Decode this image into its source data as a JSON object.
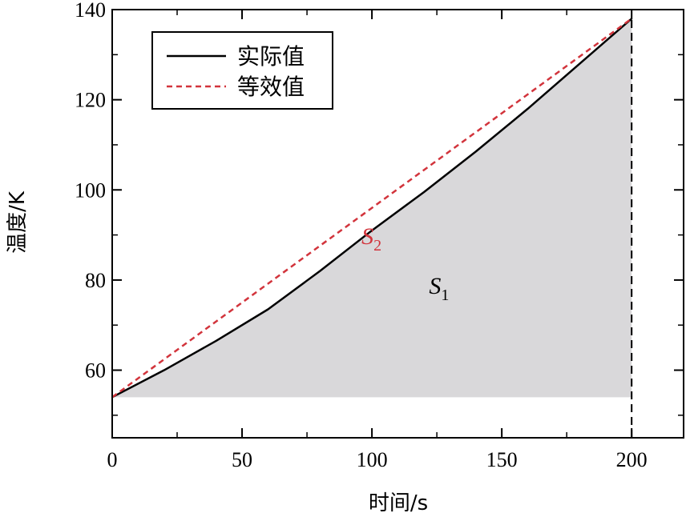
{
  "chart_data": {
    "type": "line",
    "xlabel": "时间/s",
    "ylabel": "温度/K",
    "xlim": [
      0,
      220
    ],
    "ylim": [
      45,
      140
    ],
    "x_ticks": [
      0,
      50,
      100,
      150,
      200
    ],
    "y_ticks": [
      60,
      80,
      100,
      120,
      140
    ],
    "x_tick_labels": [
      "0",
      "50",
      "100",
      "150",
      "200"
    ],
    "y_tick_labels": [
      "60",
      "80",
      "100",
      "120",
      "140"
    ],
    "grid": false,
    "legend_position": "top-left",
    "series": [
      {
        "name": "实际值",
        "color": "#000000",
        "style": "solid",
        "x": [
          0,
          20,
          40,
          60,
          80,
          100,
          120,
          140,
          160,
          180,
          200
        ],
        "y": [
          54,
          60,
          66.5,
          73.5,
          82,
          91,
          99.5,
          108.5,
          118,
          128,
          138
        ]
      },
      {
        "name": "等效值",
        "color": "#d2343c",
        "style": "dashed",
        "x": [
          0,
          200
        ],
        "y": [
          54,
          138
        ]
      }
    ],
    "fill": {
      "baseline": 54,
      "color": "#d9d8da",
      "x_end": 200
    },
    "vline": {
      "x": 200,
      "style": "dashed",
      "color": "#000000"
    },
    "annotations": [
      {
        "text": "S",
        "sub": "2",
        "color": "#d2343c",
        "x": 96,
        "y": 88
      },
      {
        "text": "S",
        "sub": "1",
        "color": "#000000",
        "x": 122,
        "y": 77
      }
    ]
  }
}
